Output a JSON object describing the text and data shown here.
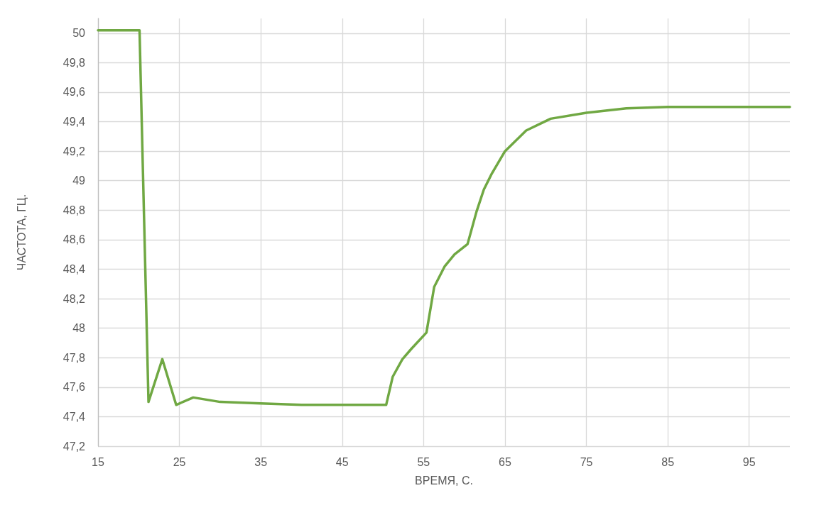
{
  "chart_data": {
    "type": "line",
    "xlabel": "ВРЕМЯ, С.",
    "ylabel": "ЧАСТОТА, ГЦ.",
    "x": [
      15,
      18,
      20.1,
      21.2,
      22.9,
      24.6,
      26.7,
      30,
      35,
      40,
      45,
      50.4,
      51.2,
      52.4,
      53.5,
      55.35,
      56.3,
      57.6,
      58.8,
      60.4,
      61.5,
      62.4,
      63.4,
      65,
      67.6,
      70.6,
      75,
      79.9,
      85,
      90,
      95,
      100
    ],
    "series": [
      {
        "color": "#70a843",
        "values": [
          50.02,
          50.02,
          50.02,
          47.5,
          47.79,
          47.48,
          47.53,
          47.5,
          47.49,
          47.48,
          47.48,
          47.48,
          47.67,
          47.79,
          47.86,
          47.97,
          48.28,
          48.42,
          48.5,
          48.57,
          48.79,
          48.94,
          49.05,
          49.2,
          49.34,
          49.42,
          49.46,
          49.49,
          49.5,
          49.5,
          49.5,
          49.5
        ]
      }
    ],
    "xlim": [
      15,
      100
    ],
    "xticks": [
      15,
      25,
      35,
      45,
      55,
      65,
      75,
      85,
      95
    ],
    "ylim": [
      47.2,
      50.1
    ],
    "yticks": [
      {
        "value": 47.2,
        "label": "47,2"
      },
      {
        "value": 47.4,
        "label": "47,4"
      },
      {
        "value": 47.6,
        "label": "47,6"
      },
      {
        "value": 47.8,
        "label": "47,8"
      },
      48,
      {
        "value": 48.2,
        "label": "48,2"
      },
      {
        "value": 48.4,
        "label": "48,4"
      },
      {
        "value": 48.6,
        "label": "48,6"
      },
      {
        "value": 48.8,
        "label": "48,8"
      },
      49,
      {
        "value": 49.2,
        "label": "49,2"
      },
      {
        "value": 49.4,
        "label": "49,4"
      },
      {
        "value": 49.6,
        "label": "49,6"
      },
      {
        "value": 49.8,
        "label": "49,8"
      },
      50
    ],
    "grid": true,
    "marker": "none",
    "line_style": "solid"
  }
}
